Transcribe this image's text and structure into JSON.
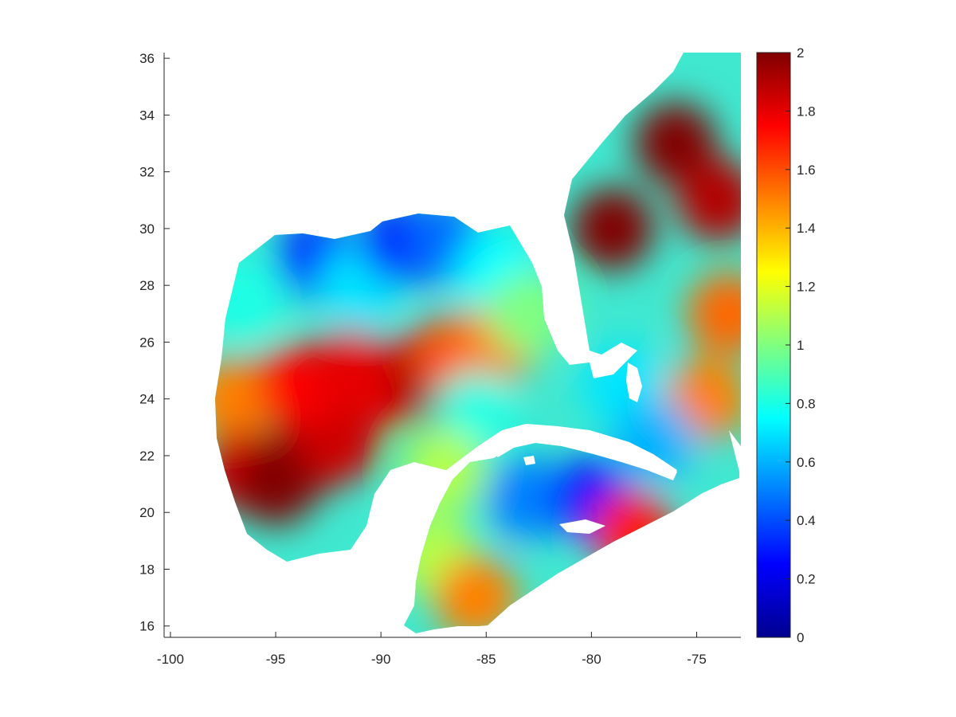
{
  "chart_data": {
    "type": "heatmap",
    "title": "",
    "xlabel": "",
    "ylabel": "",
    "xlim": [
      -100.3,
      -72.9
    ],
    "ylim": [
      15.6,
      36.2
    ],
    "xticks": [
      -100,
      -95,
      -90,
      -85,
      -80,
      -75
    ],
    "yticks": [
      16,
      18,
      20,
      22,
      24,
      26,
      28,
      30,
      32,
      34,
      36
    ],
    "grid": false,
    "colormap": "jet",
    "colorbar": {
      "range": [
        0,
        2
      ],
      "ticks": [
        0,
        0.2,
        0.4,
        0.6,
        0.8,
        1,
        1.2,
        1.4,
        1.6,
        1.8,
        2
      ],
      "placement": "right"
    },
    "regions": [
      {
        "lon": -97.0,
        "lat": 24.0,
        "value": 1.5
      },
      {
        "lon": -96.5,
        "lat": 21.5,
        "value": 1.85
      },
      {
        "lon": -95.0,
        "lat": 21.0,
        "value": 2.0
      },
      {
        "lon": -93.5,
        "lat": 22.0,
        "value": 2.0
      },
      {
        "lon": -92.0,
        "lat": 22.5,
        "value": 1.85
      },
      {
        "lon": -94.0,
        "lat": 24.5,
        "value": 1.75
      },
      {
        "lon": -91.5,
        "lat": 25.0,
        "value": 1.8
      },
      {
        "lon": -89.5,
        "lat": 24.5,
        "value": 1.8
      },
      {
        "lon": -88.0,
        "lat": 25.0,
        "value": 1.85
      },
      {
        "lon": -87.2,
        "lat": 24.5,
        "value": 2.0
      },
      {
        "lon": -86.5,
        "lat": 25.5,
        "value": 1.6
      },
      {
        "lon": -84.5,
        "lat": 26.0,
        "value": 1.5
      },
      {
        "lon": -96.5,
        "lat": 27.5,
        "value": 0.8
      },
      {
        "lon": -93.0,
        "lat": 29.0,
        "value": 0.35
      },
      {
        "lon": -91.0,
        "lat": 28.0,
        "value": 0.7
      },
      {
        "lon": -89.0,
        "lat": 29.5,
        "value": 0.3
      },
      {
        "lon": -87.0,
        "lat": 29.5,
        "value": 0.45
      },
      {
        "lon": -84.5,
        "lat": 28.5,
        "value": 0.75
      },
      {
        "lon": -83.0,
        "lat": 27.0,
        "value": 1.0
      },
      {
        "lon": -85.5,
        "lat": 23.5,
        "value": 0.8
      },
      {
        "lon": -87.0,
        "lat": 21.5,
        "value": 1.1
      },
      {
        "lon": -87.5,
        "lat": 18.5,
        "value": 1.1
      },
      {
        "lon": -85.5,
        "lat": 17.0,
        "value": 1.5
      },
      {
        "lon": -83.0,
        "lat": 20.5,
        "value": 0.5
      },
      {
        "lon": -80.0,
        "lat": 20.5,
        "value": 0.3
      },
      {
        "lon": -78.0,
        "lat": 19.3,
        "value": 1.7
      },
      {
        "lon": -79.0,
        "lat": 30.0,
        "value": 2.0
      },
      {
        "lon": -76.0,
        "lat": 33.0,
        "value": 2.0
      },
      {
        "lon": -74.0,
        "lat": 31.0,
        "value": 1.9
      },
      {
        "lon": -73.5,
        "lat": 27.0,
        "value": 1.55
      },
      {
        "lon": -74.5,
        "lat": 24.0,
        "value": 1.5
      },
      {
        "lon": -78.5,
        "lat": 24.5,
        "value": 0.7
      },
      {
        "lon": -77.0,
        "lat": 22.5,
        "value": 0.6
      }
    ]
  }
}
